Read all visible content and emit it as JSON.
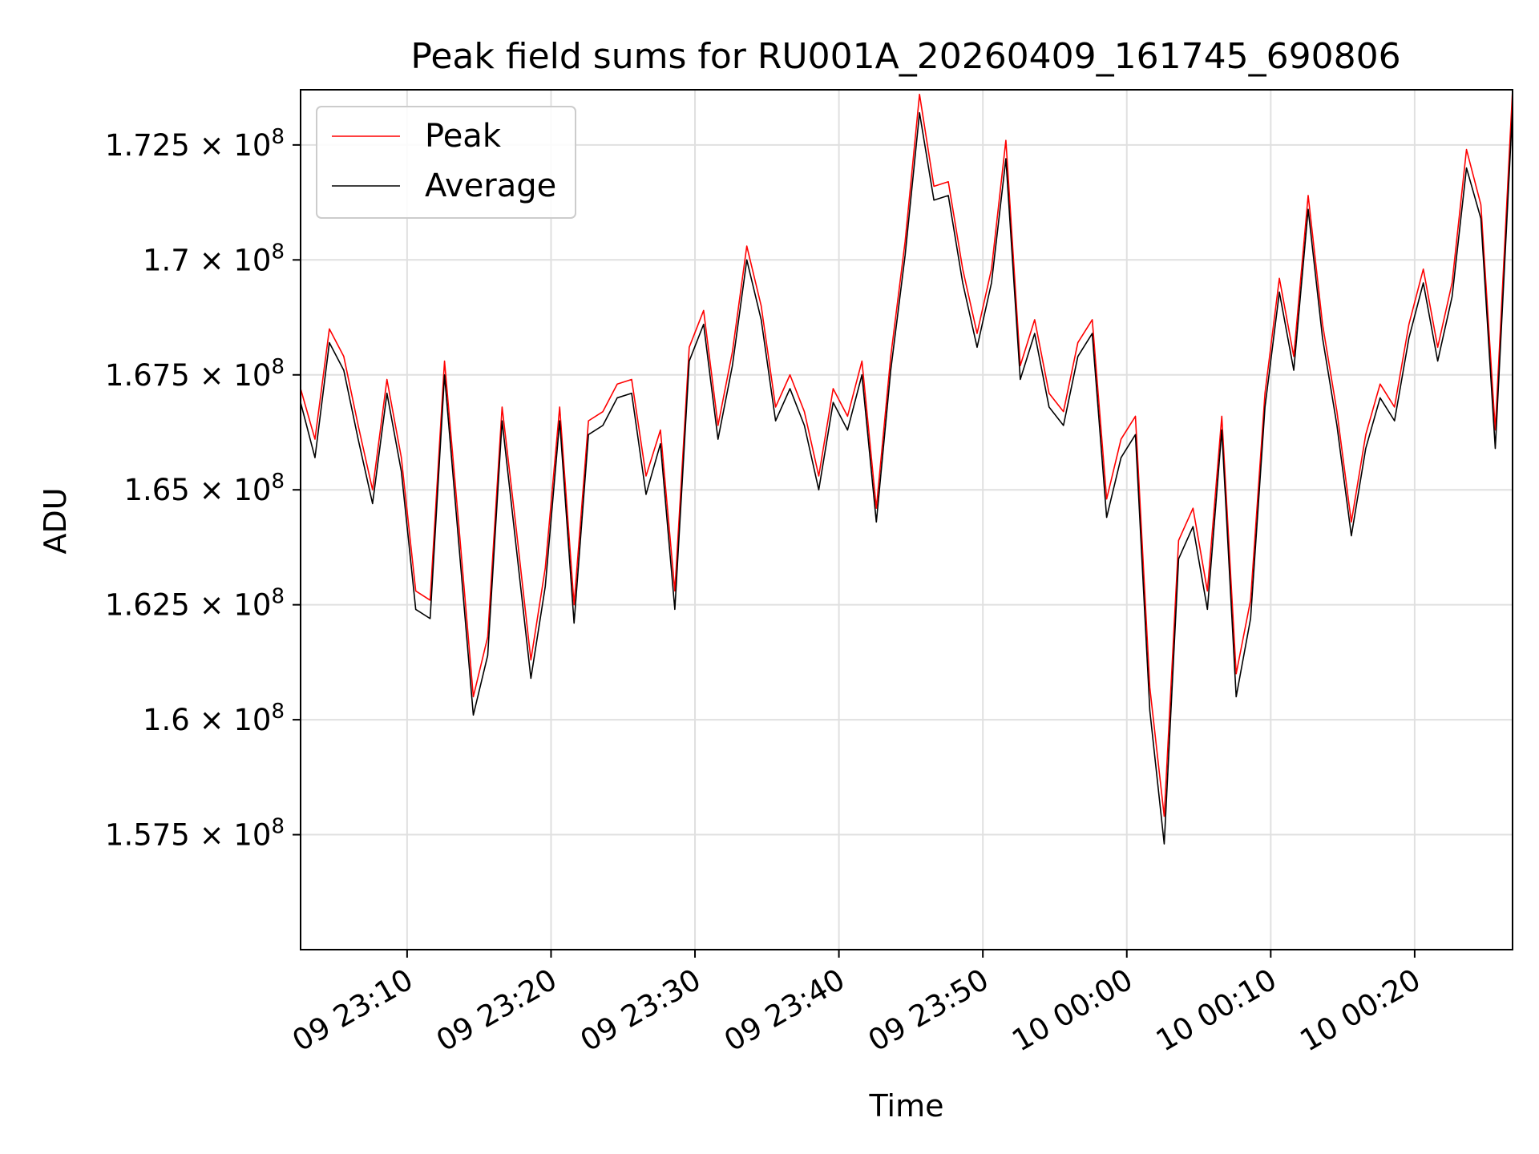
{
  "chart_data": {
    "type": "line",
    "title": "Peak field sums for RU001A_20260409_161745_690806",
    "xlabel": "Time",
    "ylabel": "ADU",
    "x_tick_labels": [
      "09 23:10",
      "09 23:20",
      "09 23:30",
      "09 23:40",
      "09 23:50",
      "10 00:00",
      "10 00:10",
      "10 00:20"
    ],
    "x_tick_minutes": [
      10,
      20,
      30,
      40,
      50,
      60,
      70,
      80
    ],
    "xlim_minutes": [
      2.6,
      86.8
    ],
    "y_tick_values": [
      157500000,
      160000000,
      162500000,
      165000000,
      167500000,
      170000000,
      172500000
    ],
    "y_tick_mantissas": [
      "1.575",
      "1.6",
      "1.625",
      "1.65",
      "1.675",
      "1.7",
      "1.725"
    ],
    "y_tick_exponent": "8",
    "ylim": [
      155000000,
      173700000
    ],
    "grid": true,
    "legend_position": "top-left",
    "colors": {
      "peak": "#ff0000",
      "average": "#000000",
      "grid": "#e0e0e0"
    },
    "x_minutes": [
      2.6,
      3.6,
      4.6,
      5.6,
      6.6,
      7.6,
      8.6,
      9.6,
      10.6,
      11.6,
      12.6,
      13.6,
      14.6,
      15.6,
      16.6,
      17.6,
      18.6,
      19.6,
      20.6,
      21.6,
      22.6,
      23.6,
      24.6,
      25.6,
      26.6,
      27.6,
      28.6,
      29.6,
      30.6,
      31.6,
      32.6,
      33.6,
      34.6,
      35.6,
      36.6,
      37.6,
      38.6,
      39.6,
      40.6,
      41.6,
      42.6,
      43.6,
      44.6,
      45.6,
      46.6,
      47.6,
      48.6,
      49.6,
      50.6,
      51.6,
      52.6,
      53.6,
      54.6,
      55.6,
      56.6,
      57.6,
      58.6,
      59.6,
      60.6,
      61.6,
      62.6,
      63.6,
      64.6,
      65.6,
      66.6,
      67.6,
      68.6,
      69.6,
      70.6,
      71.6,
      72.6,
      73.6,
      74.6,
      75.6,
      76.6,
      77.6,
      78.6,
      79.6,
      80.6,
      81.6,
      82.6,
      83.6,
      84.6,
      85.6,
      86.8
    ],
    "series": [
      {
        "name": "Peak",
        "values": [
          167200000,
          166100000,
          168500000,
          167900000,
          166400000,
          165000000,
          167400000,
          165700000,
          162800000,
          162600000,
          167800000,
          164200000,
          160500000,
          161800000,
          166800000,
          164100000,
          161300000,
          163300000,
          166800000,
          162500000,
          166500000,
          166700000,
          167300000,
          167400000,
          165300000,
          166300000,
          162800000,
          168100000,
          168900000,
          166400000,
          168000000,
          170300000,
          169000000,
          166800000,
          167500000,
          166700000,
          165300000,
          167200000,
          166600000,
          167800000,
          164600000,
          167900000,
          170400000,
          173600000,
          171600000,
          171700000,
          169800000,
          168400000,
          169800000,
          172600000,
          167700000,
          168700000,
          167100000,
          166700000,
          168200000,
          168700000,
          164800000,
          166100000,
          166600000,
          160700000,
          157900000,
          163900000,
          164600000,
          162800000,
          166600000,
          161000000,
          162600000,
          167100000,
          169600000,
          167900000,
          171400000,
          168600000,
          166700000,
          164300000,
          166200000,
          167300000,
          166800000,
          168600000,
          169800000,
          168100000,
          169500000,
          172400000,
          171200000,
          166300000,
          173700000
        ],
        "color": "#ff0000"
      },
      {
        "name": "Average",
        "values": [
          166900000,
          165700000,
          168200000,
          167600000,
          166100000,
          164700000,
          167100000,
          165400000,
          162400000,
          162200000,
          167500000,
          163800000,
          160100000,
          161400000,
          166500000,
          163700000,
          160900000,
          162900000,
          166500000,
          162100000,
          166200000,
          166400000,
          167000000,
          167100000,
          164900000,
          166000000,
          162400000,
          167800000,
          168600000,
          166100000,
          167700000,
          170000000,
          168700000,
          166500000,
          167200000,
          166400000,
          165000000,
          166900000,
          166300000,
          167500000,
          164300000,
          167600000,
          170100000,
          173200000,
          171300000,
          171400000,
          169500000,
          168100000,
          169500000,
          172200000,
          167400000,
          168400000,
          166800000,
          166400000,
          167900000,
          168400000,
          164400000,
          165700000,
          166200000,
          160200000,
          157300000,
          163500000,
          164200000,
          162400000,
          166300000,
          160500000,
          162200000,
          166800000,
          169300000,
          167600000,
          171100000,
          168300000,
          166400000,
          164000000,
          165900000,
          167000000,
          166500000,
          168300000,
          169500000,
          167800000,
          169200000,
          172000000,
          170900000,
          165900000,
          173300000
        ],
        "color": "#000000"
      }
    ]
  }
}
